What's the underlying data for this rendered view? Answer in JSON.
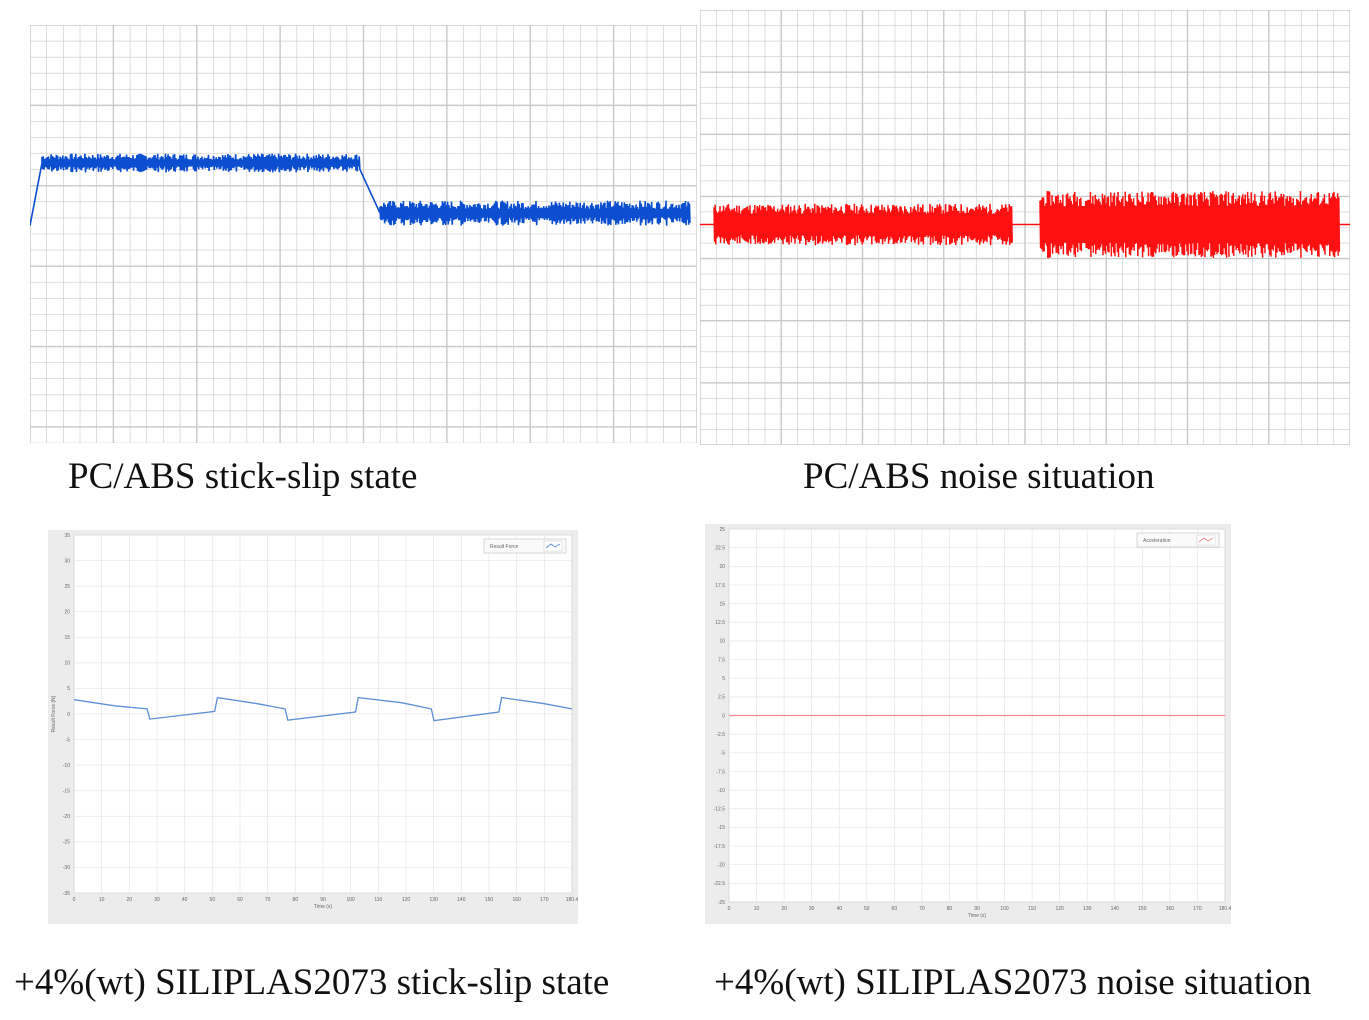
{
  "colors": {
    "pcabs_stick_slip": "#0b4fd0",
    "pcabs_noise": "#ff1111",
    "siliplas_stick_slip": "#5b8fd6",
    "siliplas_noise": "#f08a8a",
    "grid": "#c9c9c9",
    "plot_bg": "#ffffff",
    "frame_bg": "#ececec"
  },
  "captions": {
    "top_left": "PC/ABS stick-slip state",
    "top_right": "PC/ABS noise situation",
    "bottom_left": "+4%(wt) SILIPLAS2073 stick-slip state",
    "bottom_right": "+4%(wt) SILIPLAS2073 noise situation"
  },
  "chart_data": [
    {
      "id": "pcabs-stick-slip",
      "type": "line",
      "title": "PC/ABS stick-slip state",
      "grid": true,
      "ylim": [
        0,
        1
      ],
      "levels": [
        {
          "phase": "first",
          "value": 0.67,
          "band": 0.03
        },
        {
          "phase": "second",
          "value": 0.55,
          "band": 0.04
        }
      ]
    },
    {
      "id": "pcabs-noise",
      "type": "line",
      "title": "PC/ABS noise situation",
      "grid": true,
      "ylim": [
        -1,
        1
      ],
      "levels": [
        {
          "phase": "first",
          "value": 0,
          "band": 0.08
        },
        {
          "phase": "second",
          "value": 0,
          "band": 0.14
        }
      ]
    },
    {
      "id": "siliplas-stick-slip",
      "type": "line",
      "title": "+4%(wt) SILIPLAS2073 stick-slip state",
      "legend": "Result Force",
      "legend_position": "top-right",
      "xlabel": "Time (s)",
      "ylabel": "Result Force (N)",
      "grid": true,
      "xlim": [
        0,
        184
      ],
      "ylim": [
        -35,
        35
      ],
      "xticks": [
        "0",
        "10",
        "20",
        "30",
        "40",
        "50",
        "60",
        "70",
        "80",
        "90",
        "100",
        "110",
        "120",
        "130",
        "140",
        "150",
        "160",
        "170",
        "180.4"
      ],
      "yticks": [
        "35",
        "30",
        "25",
        "20",
        "15",
        "10",
        "5",
        "0",
        "-5",
        "-10",
        "-15",
        "-20",
        "-25",
        "-30",
        "-35"
      ],
      "x": [
        0,
        15,
        27,
        28,
        52,
        53,
        68,
        78,
        79,
        104,
        105,
        121,
        132,
        133,
        157,
        158,
        173,
        184
      ],
      "y": [
        2.8,
        1.6,
        1.0,
        -1.0,
        0.5,
        3.2,
        2.0,
        1.0,
        -1.2,
        0.4,
        3.2,
        2.2,
        1.0,
        -1.3,
        0.4,
        3.2,
        2.1,
        1.0
      ]
    },
    {
      "id": "siliplas-noise",
      "type": "line",
      "title": "+4%(wt) SILIPLAS2073 noise situation",
      "legend": "Acceleration",
      "legend_position": "top-right",
      "xlabel": "Time (s)",
      "grid": true,
      "xlim": [
        0,
        184
      ],
      "ylim": [
        -25,
        25
      ],
      "xticks": [
        "0",
        "10",
        "20",
        "30",
        "40",
        "50",
        "60",
        "70",
        "80",
        "90",
        "100",
        "110",
        "120",
        "130",
        "140",
        "150",
        "160",
        "170",
        "180.4"
      ],
      "yticks": [
        "25",
        "22.5",
        "20",
        "17.5",
        "15",
        "12.5",
        "10",
        "7.5",
        "5",
        "2.5",
        "0",
        "-2.5",
        "-5",
        "-7.5",
        "-10",
        "-12.5",
        "-15",
        "-17.5",
        "-20",
        "-22.5",
        "-25"
      ],
      "x": [
        0,
        184
      ],
      "y": [
        0,
        0
      ]
    }
  ]
}
